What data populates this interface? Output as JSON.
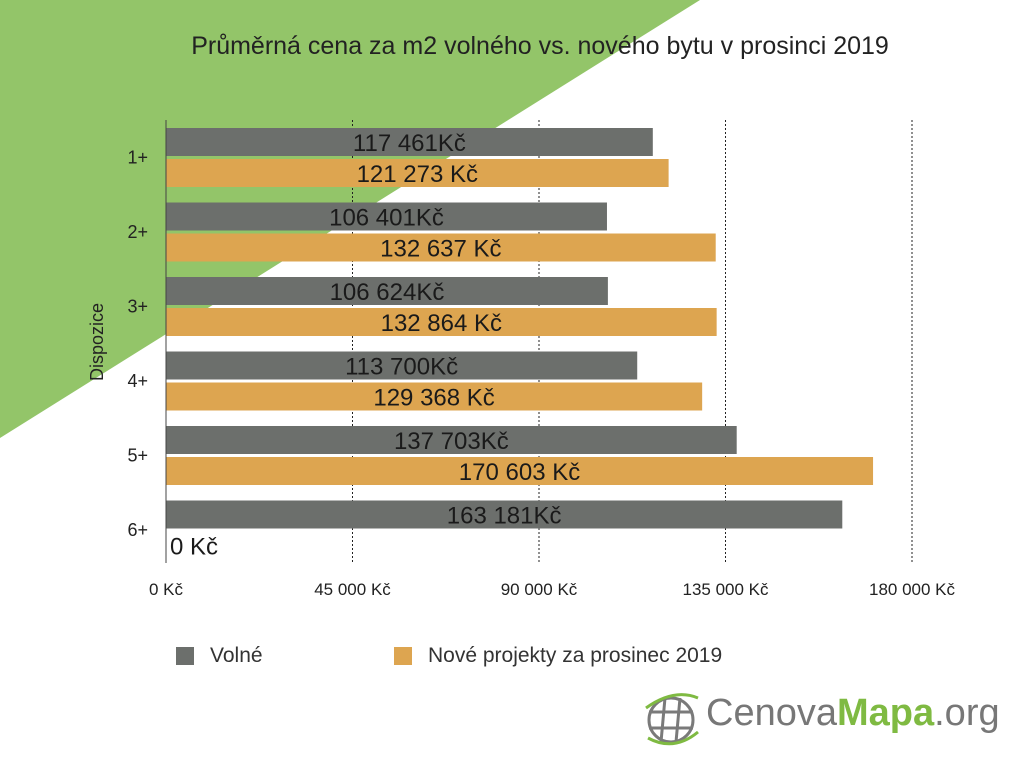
{
  "chart_data": {
    "type": "bar",
    "orientation": "horizontal",
    "title": "Průměrná cena za m2 volného vs. nového bytu v prosinci 2019",
    "ylabel": "Dispozice",
    "xlabel": "",
    "categories": [
      "1+",
      "2+",
      "3+",
      "4+",
      "5+",
      "6+"
    ],
    "series": [
      {
        "name": "Volné",
        "color": "#6c6f6c",
        "values": [
          117461,
          106401,
          106624,
          113700,
          137703,
          163181
        ],
        "labels": [
          "117 461Kč",
          "106 401Kč",
          "106 624Kč",
          "113 700Kč",
          "137 703Kč",
          "163 181Kč"
        ]
      },
      {
        "name": "Nové projekty za prosinec 2019",
        "color": "#dda550",
        "values": [
          121273,
          132637,
          132864,
          129368,
          170603,
          0
        ],
        "labels": [
          "121 273 Kč",
          "132 637 Kč",
          "132 864 Kč",
          "129 368 Kč",
          "170 603 Kč",
          "0 Kč"
        ]
      }
    ],
    "xlim": [
      0,
      180000
    ],
    "xticks": [
      0,
      45000,
      90000,
      135000,
      180000
    ],
    "xtick_labels": [
      "0 Kč",
      "45 000 Kč",
      "90 000 Kč",
      "135 000 Kč",
      "180 000 Kč"
    ],
    "grid": "vertical dashed",
    "legend_position": "bottom"
  },
  "background_accent_color": "#93c569",
  "logo": {
    "part1": "Cenova",
    "part2": "Mapa",
    "part3": ".org",
    "icon": "globe-icon"
  }
}
